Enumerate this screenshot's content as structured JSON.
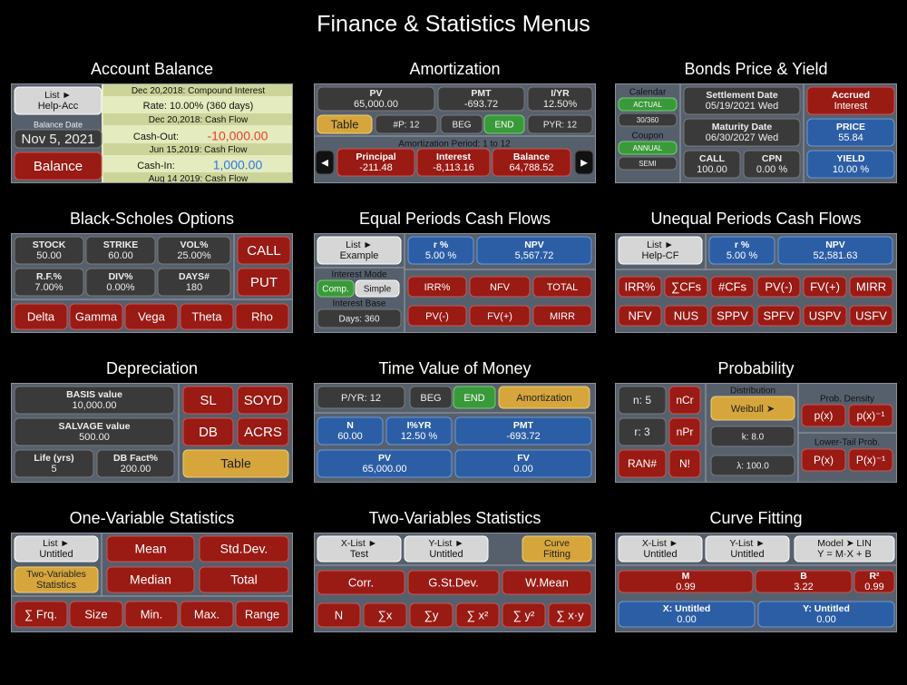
{
  "title": "Finance & Statistics Menus",
  "panels": [
    {
      "title": "Account Balance",
      "items": [
        [
          "List ►",
          "Help-Acc"
        ],
        [
          "Balance Date"
        ],
        [
          "Nov 5, 2021"
        ],
        [
          "Balance"
        ],
        [
          "Dec 20,2018: Compound Interest"
        ],
        [
          "Rate: 10.00% (360 days)"
        ],
        [
          "Dec 20,2018: Cash Flow"
        ],
        [
          "Cash-Out:"
        ],
        [
          "-10,000.00"
        ],
        [
          "Jun 15,2019: Cash Flow"
        ],
        [
          "Cash-In:"
        ],
        [
          "1,000.00"
        ],
        [
          "Aug 14 2019: Cash Flow"
        ]
      ]
    },
    {
      "title": "Amortization",
      "items": [
        [
          "PV",
          "65,000.00"
        ],
        [
          "PMT",
          "-693.72"
        ],
        [
          "I/YR",
          "12.50%"
        ],
        [
          "Table"
        ],
        [
          "#P: 12"
        ],
        [
          "BEG"
        ],
        [
          "END"
        ],
        [
          "PYR: 12"
        ],
        [
          "Amortization Period: 1 to 12"
        ],
        [
          "◄"
        ],
        [
          "Principal",
          "-211.48"
        ],
        [
          "Interest",
          "-8,113.16"
        ],
        [
          "Balance",
          "64,788.52"
        ],
        [
          "►"
        ]
      ]
    },
    {
      "title": "Bonds Price & Yield",
      "items": [
        [
          "Calendar"
        ],
        [
          "ACTUAL"
        ],
        [
          "30/360"
        ],
        [
          "Coupon"
        ],
        [
          "ANNUAL"
        ],
        [
          "SEMI"
        ],
        [
          "Settlement Date",
          "05/19/2021  Wed"
        ],
        [
          "Maturity Date",
          "06/30/2027  Wed"
        ],
        [
          "CALL",
          "100.00"
        ],
        [
          "CPN",
          "0.00 %"
        ],
        [
          "Accrued",
          "Interest"
        ],
        [
          "PRICE",
          "55.84"
        ],
        [
          "YIELD",
          "10.00 %"
        ]
      ]
    },
    {
      "title": "Black-Scholes Options",
      "items": [
        [
          "STOCK",
          "50.00"
        ],
        [
          "STRIKE",
          "60.00"
        ],
        [
          "VOL%",
          "25.00%"
        ],
        [
          "R.F.%",
          "7.00%"
        ],
        [
          "DIV%",
          "0.00%"
        ],
        [
          "DAYS#",
          "180"
        ],
        [
          "CALL"
        ],
        [
          "PUT"
        ],
        [
          "Delta"
        ],
        [
          "Gamma"
        ],
        [
          "Vega"
        ],
        [
          "Theta"
        ],
        [
          "Rho"
        ]
      ]
    },
    {
      "title": "Equal Periods Cash Flows",
      "items": [
        [
          "List ►",
          "Example"
        ],
        [
          "Interest Mode"
        ],
        [
          "Comp."
        ],
        [
          "Simple"
        ],
        [
          "Interest Base"
        ],
        [
          "Days: 360"
        ],
        [
          "r %",
          "5.00 %"
        ],
        [
          "NPV",
          "5,567.72"
        ],
        [
          "IRR%"
        ],
        [
          "NFV"
        ],
        [
          "TOTAL"
        ],
        [
          "PV(-)"
        ],
        [
          "FV(+)"
        ],
        [
          "MIRR"
        ]
      ]
    },
    {
      "title": "Unequal Periods Cash Flows",
      "items": [
        [
          "List ►",
          "Help-CF"
        ],
        [
          "r %",
          "5.00 %"
        ],
        [
          "NPV",
          "52,581.63"
        ],
        [
          "IRR%"
        ],
        [
          "∑CFs"
        ],
        [
          "#CFs"
        ],
        [
          "PV(-)"
        ],
        [
          "FV(+)"
        ],
        [
          "MIRR"
        ],
        [
          "NFV"
        ],
        [
          "NUS"
        ],
        [
          "SPPV"
        ],
        [
          "SPFV"
        ],
        [
          "USPV"
        ],
        [
          "USFV"
        ]
      ]
    },
    {
      "title": "Depreciation",
      "items": [
        [
          "BASIS value",
          "10,000.00"
        ],
        [
          "SALVAGE value",
          "500.00"
        ],
        [
          "Life (yrs)",
          "5"
        ],
        [
          "DB Fact%",
          "200.00"
        ],
        [
          "SL"
        ],
        [
          "SOYD"
        ],
        [
          "DB"
        ],
        [
          "ACRS"
        ],
        [
          "Table"
        ]
      ]
    },
    {
      "title": "Time Value of Money",
      "items": [
        [
          "P/YR: 12"
        ],
        [
          "BEG"
        ],
        [
          "END"
        ],
        [
          "Amortization"
        ],
        [
          "N",
          "60.00"
        ],
        [
          "I%YR",
          "12.50 %"
        ],
        [
          "PMT",
          "-693.72"
        ],
        [
          "PV",
          "65,000.00"
        ],
        [
          "FV",
          "0.00"
        ]
      ]
    },
    {
      "title": "Probability",
      "items": [
        [
          "n: 5"
        ],
        [
          "nCr"
        ],
        [
          "r: 3"
        ],
        [
          "nPr"
        ],
        [
          "RAN#"
        ],
        [
          "N!"
        ],
        [
          "Distribution"
        ],
        [
          "Weibull ➤"
        ],
        [
          "k: 8.0"
        ],
        [
          "λ: 100.0"
        ],
        [
          "Prob. Density"
        ],
        [
          "p(x)"
        ],
        [
          "p(x)⁻¹"
        ],
        [
          "Lower-Tail Prob."
        ],
        [
          "P(x)"
        ],
        [
          "P(x)⁻¹"
        ]
      ]
    },
    {
      "title": "One-Variable Statistics",
      "items": [
        [
          "List ►",
          "Untitled"
        ],
        [
          "Two-Variables",
          "Statistics"
        ],
        [
          "Mean"
        ],
        [
          "Std.Dev."
        ],
        [
          "Median"
        ],
        [
          "Total"
        ],
        [
          "∑ Frq."
        ],
        [
          "Size"
        ],
        [
          "Min."
        ],
        [
          "Max."
        ],
        [
          "Range"
        ]
      ]
    },
    {
      "title": "Two-Variables Statistics",
      "items": [
        [
          "X-List ►",
          "Test"
        ],
        [
          "Y-List ►",
          "Untitled"
        ],
        [
          "Curve",
          "Fitting"
        ],
        [
          "Corr."
        ],
        [
          "G.St.Dev."
        ],
        [
          "W.Mean"
        ],
        [
          "N"
        ],
        [
          "∑x"
        ],
        [
          "∑y"
        ],
        [
          "∑ x²"
        ],
        [
          "∑ y²"
        ],
        [
          "∑ x·y"
        ]
      ]
    },
    {
      "title": "Curve Fitting",
      "items": [
        [
          "X-List ►",
          "Untitled"
        ],
        [
          "Y-List ►",
          "Untitled"
        ],
        [
          "Model ➤ LIN",
          "Y = M·X + B"
        ],
        [
          "M",
          "0.99"
        ],
        [
          "B",
          "3.22"
        ],
        [
          "R²",
          "0.99"
        ],
        [
          "X: Untitled",
          "0.00"
        ],
        [
          "Y: Untitled",
          "0.00"
        ]
      ]
    }
  ]
}
